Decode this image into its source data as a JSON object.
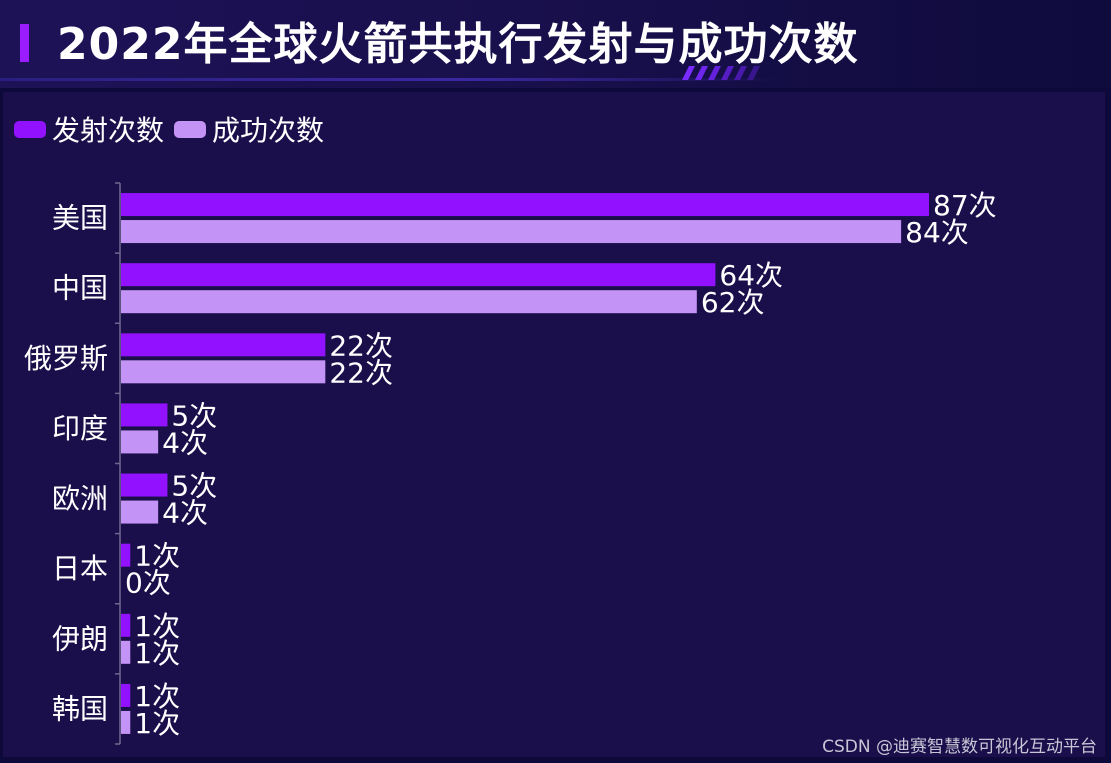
{
  "header": {
    "title": "2022年全球火箭共执行发射与成功次数"
  },
  "watermark": "CSDN @迪赛智慧数可视化互动平台",
  "colors": {
    "launch": "#9211ff",
    "success": "#c393f5",
    "label": "#ffffff",
    "axis": "#6e6a8e"
  },
  "chart_data": {
    "type": "bar",
    "orientation": "horizontal",
    "title": "2022年全球火箭共执行发射与成功次数",
    "categories": [
      "美国",
      "中国",
      "俄罗斯",
      "印度",
      "欧洲",
      "日本",
      "伊朗",
      "韩国"
    ],
    "series": [
      {
        "name": "发射次数",
        "values": [
          87,
          64,
          22,
          5,
          5,
          1,
          1,
          1
        ]
      },
      {
        "name": "成功次数",
        "values": [
          84,
          62,
          22,
          4,
          4,
          0,
          1,
          1
        ]
      }
    ],
    "label_suffix": "次",
    "xlim": [
      0,
      87
    ],
    "grid": false,
    "legend": "top-left"
  }
}
